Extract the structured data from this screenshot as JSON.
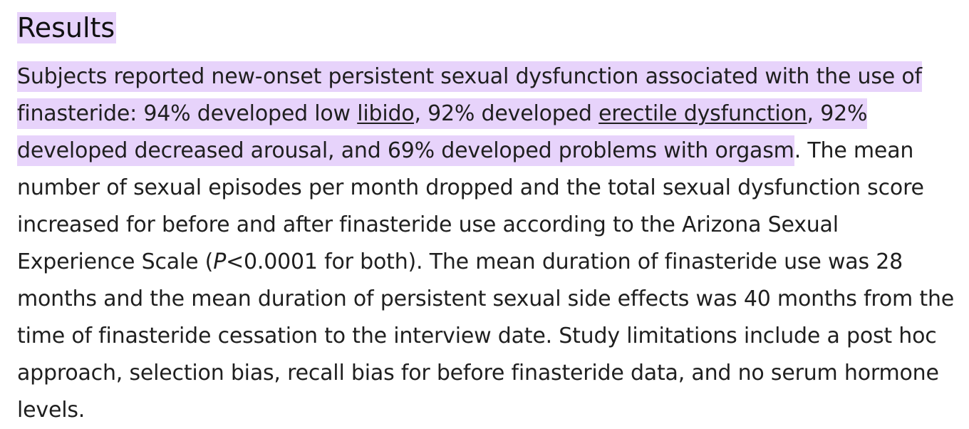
{
  "section": {
    "title": "Results"
  },
  "paragraph": {
    "hl_part1": "Subjects reported new-onset persistent sexual dysfunction associated with the use of finasteride: 94% developed low ",
    "link_libido": "libido",
    "hl_part2": ", 92% developed ",
    "link_erectile": "erectile dysfunction",
    "hl_part3": ", 92% developed decreased arousal, and 69% developed problems with orgasm",
    "text_part4": ". The mean number of sexual episodes per month dropped and the total sexual dysfunction score increased for before and after finasteride use according to the Arizona Sexual Experience Scale (",
    "italic_p": "P",
    "text_part5": "<0.0001 for both). The mean duration of finasteride use was 28 months and the mean duration of persistent sexual side effects was 40 months from the time of finasteride cessation to the interview date. Study limitations include a post hoc approach, selection bias, recall bias for before finasteride data, and no serum hormone levels."
  },
  "colors": {
    "highlight": "#e7d3fb",
    "text": "#1f1f1f"
  }
}
